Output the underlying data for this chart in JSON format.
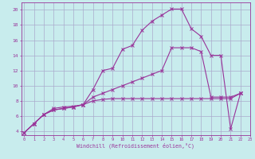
{
  "background_color": "#c8eced",
  "grid_color": "#aaaacc",
  "line_color": "#993399",
  "xlabel": "Windchill (Refroidissement éolien,°C)",
  "xlim": [
    -0.3,
    23.0
  ],
  "ylim": [
    3.5,
    21.0
  ],
  "xtick_labels": [
    "0",
    "1",
    "2",
    "3",
    "4",
    "5",
    "6",
    "7",
    "8",
    "9",
    "10",
    "11",
    "12",
    "13",
    "14",
    "15",
    "16",
    "17",
    "18",
    "19",
    "20",
    "21",
    "22",
    "23"
  ],
  "ytick_values": [
    4,
    6,
    8,
    10,
    12,
    14,
    16,
    18,
    20
  ],
  "line1_x": [
    0,
    1,
    2,
    3,
    4,
    5,
    6,
    7,
    8,
    9,
    10,
    11,
    12,
    13,
    14,
    15,
    16,
    17,
    18,
    19,
    20,
    21,
    22
  ],
  "line1_y": [
    3.8,
    5.0,
    6.2,
    7.0,
    7.2,
    7.3,
    7.5,
    9.5,
    12.0,
    12.3,
    14.8,
    15.3,
    17.3,
    18.5,
    19.3,
    20.1,
    20.1,
    17.5,
    16.5,
    14.0,
    14.0,
    4.3,
    9.0
  ],
  "line2_x": [
    0,
    1,
    2,
    3,
    4,
    5,
    6,
    7,
    8,
    9,
    10,
    11,
    12,
    13,
    14,
    15,
    16,
    17,
    18,
    19,
    20,
    21,
    22
  ],
  "line2_y": [
    3.8,
    5.0,
    6.2,
    6.8,
    7.0,
    7.2,
    7.5,
    8.5,
    9.0,
    9.5,
    10.0,
    10.5,
    11.0,
    11.5,
    12.0,
    15.0,
    15.0,
    15.0,
    14.5,
    8.5,
    8.5,
    8.5,
    9.0
  ],
  "line3_x": [
    0,
    1,
    2,
    3,
    4,
    5,
    6,
    7,
    8,
    9,
    10,
    11,
    12,
    13,
    14,
    15,
    16,
    17,
    18,
    19,
    20,
    21,
    22
  ],
  "line3_y": [
    3.8,
    5.0,
    6.2,
    6.8,
    7.0,
    7.2,
    7.5,
    8.0,
    8.2,
    8.3,
    8.3,
    8.3,
    8.3,
    8.3,
    8.3,
    8.3,
    8.3,
    8.3,
    8.3,
    8.3,
    8.3,
    8.3,
    9.0
  ]
}
